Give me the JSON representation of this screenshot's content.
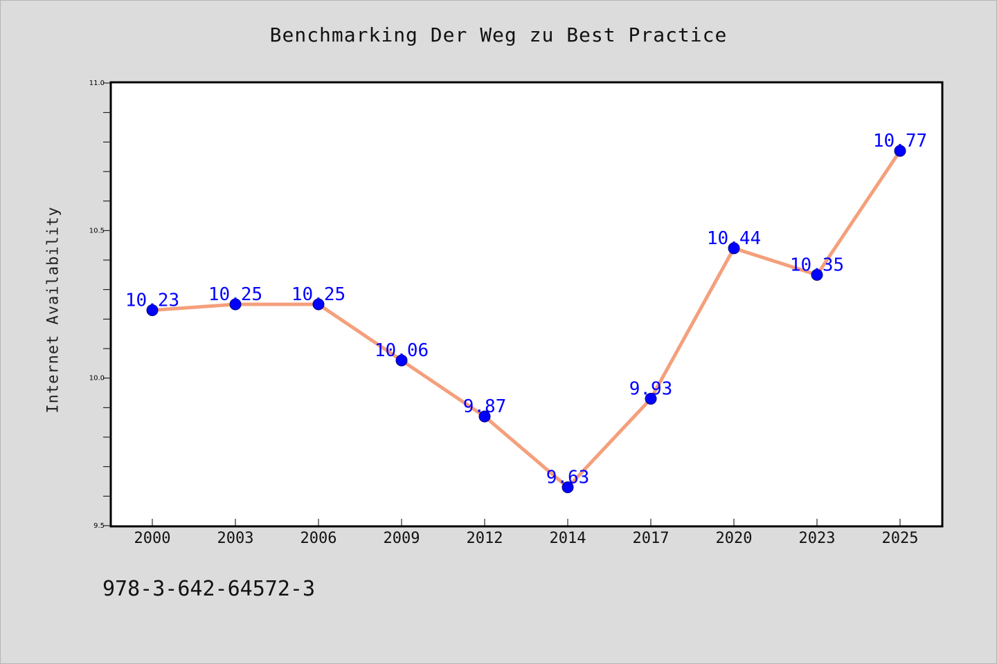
{
  "chart_data": {
    "type": "line",
    "title": "Benchmarking Der Weg zu Best Practice",
    "xlabel": "",
    "ylabel": "Internet Availability",
    "categories": [
      "2000",
      "2003",
      "2006",
      "2009",
      "2012",
      "2014",
      "2017",
      "2020",
      "2023",
      "2025"
    ],
    "values": [
      10.23,
      10.25,
      10.25,
      10.06,
      9.87,
      9.63,
      9.93,
      10.44,
      10.35,
      10.77
    ],
    "data_labels": [
      "10.23",
      "10.25",
      "10.25",
      "10.06",
      "9.87",
      "9.63",
      "9.93",
      "10.44",
      "10.35",
      "10.77"
    ],
    "ylim": [
      9.5,
      11.0
    ],
    "yticks": [
      "9.5",
      "10.0",
      "10.5",
      "11.0"
    ],
    "grid": false,
    "line_color": "#f4a07c",
    "marker_color": "#0000ff",
    "label_color": "#0000ff"
  },
  "footer": {
    "isbn": "978-3-642-64572-3"
  }
}
